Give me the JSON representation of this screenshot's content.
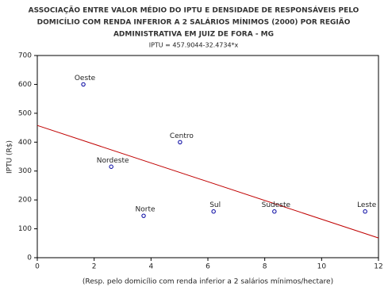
{
  "chart_data": {
    "type": "scatter",
    "title": [
      "ASSOCIAÇÃO ENTRE VALOR MÉDIO DO IPTU E DENSIDADE DE RESPONSÁVEIS PELO",
      "DOMICÍLIO COM RENDA INFERIOR A 2 SALÁRIOS MÍNIMOS (2000) POR REGIÃO",
      "ADMINISTRATIVA EM JUIZ DE FORA - MG"
    ],
    "subtitle": "IPTU = 457.9044-32.4734*x",
    "x_label": "(Resp. pelo domicílio com renda inferior a 2 salários mínimos/hectare)",
    "y_label": "IPTU (R$)",
    "labels": [
      "Oeste",
      "Nordeste",
      "Norte",
      "Centro",
      "Sul",
      "Sudeste",
      "Leste"
    ],
    "x": [
      1.62,
      2.6,
      3.74,
      5.02,
      6.2,
      8.34,
      11.53
    ],
    "values": [
      600,
      315,
      145,
      400,
      160,
      160,
      160
    ],
    "color": "#0000a0",
    "fit_color": "#c00000",
    "xlim": [
      0,
      12
    ],
    "xticks": [
      0,
      2,
      4,
      6,
      8,
      10,
      12
    ],
    "ylim": [
      0,
      700
    ],
    "yticks": [
      0,
      100,
      200,
      300,
      400,
      500,
      600,
      700
    ]
  }
}
